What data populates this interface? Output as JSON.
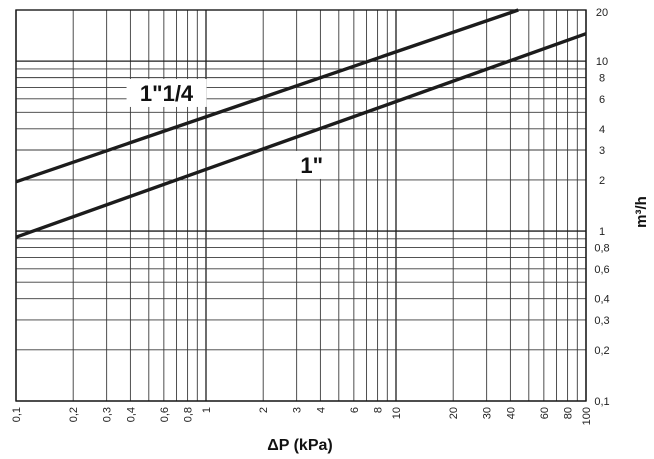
{
  "chart_data": {
    "type": "line",
    "title": "",
    "xlabel": "ΔP (kPa)",
    "ylabel": "m³/h",
    "x_scale": "log",
    "y_scale": "log",
    "xlim": [
      0.1,
      100
    ],
    "ylim": [
      0.1,
      20
    ],
    "grid": true,
    "y_axis_side": "right",
    "x_ticks": [
      0.1,
      0.2,
      0.3,
      0.4,
      0.6,
      0.8,
      1,
      2,
      3,
      4,
      6,
      8,
      10,
      20,
      30,
      40,
      60,
      80,
      100
    ],
    "x_tick_labels": [
      "0,1",
      "0,2",
      "0,3",
      "0,4",
      "0,6",
      "0,8",
      "1",
      "2",
      "3",
      "4",
      "6",
      "8",
      "10",
      "20",
      "30",
      "40",
      "60",
      "80",
      "100"
    ],
    "y_ticks": [
      0.1,
      0.2,
      0.3,
      0.4,
      0.6,
      0.8,
      1,
      2,
      3,
      4,
      6,
      8,
      10,
      20
    ],
    "y_tick_labels": [
      "0,1",
      "0,2",
      "0,3",
      "0,4",
      "0,6",
      "0,8",
      "1",
      "2",
      "3",
      "4",
      "6",
      "8",
      "10",
      "20"
    ],
    "series": [
      {
        "name": "1\"1/4",
        "x": [
          0.1,
          44
        ],
        "y": [
          1.95,
          20
        ]
      },
      {
        "name": "1\"",
        "x": [
          0.1,
          100
        ],
        "y": [
          0.92,
          14.5
        ]
      }
    ]
  }
}
